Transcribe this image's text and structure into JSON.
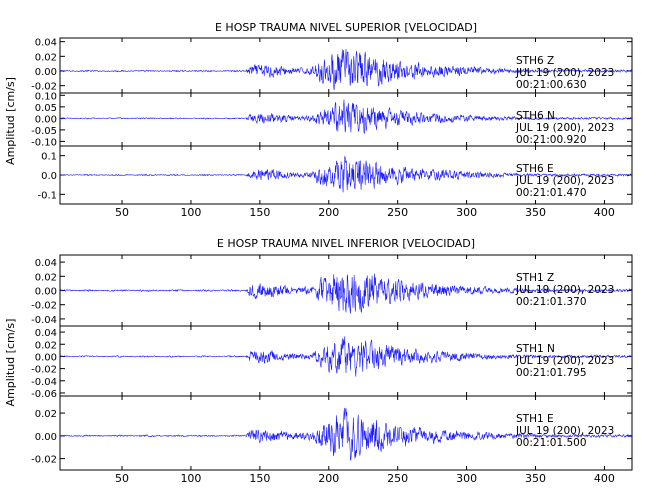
{
  "chart_data": [
    {
      "type": "line",
      "title": "E HOSP TRAUMA NIVEL SUPERIOR [VELOCIDAD]",
      "ylabel": "Amplitud [cm/s]",
      "xlim": [
        5,
        420
      ],
      "xticks": [
        "50",
        "100",
        "150",
        "200",
        "250",
        "300",
        "350",
        "400"
      ],
      "series": [
        {
          "name": "STH6 Z",
          "station": "STH6",
          "component": "Z",
          "date": "JUL 19 (200), 2023",
          "time": "00:21:00.630",
          "ylim": [
            -0.03,
            0.045
          ],
          "yticks": [
            "0.04",
            "0.02",
            "0.00",
            "-0.02"
          ],
          "peak_amplitude": 0.04
        },
        {
          "name": "STH6 N",
          "station": "STH6",
          "component": "N",
          "date": "JUL 19 (200), 2023",
          "time": "00:21:00.920",
          "ylim": [
            -0.12,
            0.11
          ],
          "yticks": [
            "0.10",
            "0.05",
            "0.00",
            "-0.05",
            "-0.10"
          ],
          "peak_amplitude": 0.1
        },
        {
          "name": "STH6 E",
          "station": "STH6",
          "component": "E",
          "date": "JUL 19 (200), 2023",
          "time": "00:21:01.470",
          "ylim": [
            -0.15,
            0.15
          ],
          "yticks": [
            "0.1",
            "0.0",
            "-0.1"
          ],
          "peak_amplitude": 0.13
        }
      ]
    },
    {
      "type": "line",
      "title": "E HOSP TRAUMA NIVEL INFERIOR [VELOCIDAD]",
      "ylabel": "Amplitud [cm/s]",
      "xlim": [
        5,
        420
      ],
      "xticks": [
        "50",
        "100",
        "150",
        "200",
        "250",
        "300",
        "350",
        "400"
      ],
      "series": [
        {
          "name": "STH1 Z",
          "station": "STH1",
          "component": "Z",
          "date": "JUL 19 (200), 2023",
          "time": "00:21:01.370",
          "ylim": [
            -0.05,
            0.05
          ],
          "yticks": [
            "0.04",
            "0.02",
            "0.00",
            "-0.02",
            "-0.04"
          ],
          "peak_amplitude": 0.045
        },
        {
          "name": "STH1 N",
          "station": "STH1",
          "component": "N",
          "date": "JUL 19 (200), 2023",
          "time": "00:21:01.795",
          "ylim": [
            -0.065,
            0.05
          ],
          "yticks": [
            "0.04",
            "0.02",
            "0.00",
            "-0.02",
            "-0.04",
            "-0.06"
          ],
          "peak_amplitude": 0.045
        },
        {
          "name": "STH1 E",
          "station": "STH1",
          "component": "E",
          "date": "JUL 19 (200), 2023",
          "time": "00:21:01.500",
          "ylim": [
            -0.03,
            0.035
          ],
          "yticks": [
            "0.02",
            "0.00",
            "-0.02"
          ],
          "peak_amplitude": 0.028
        }
      ]
    }
  ],
  "colors": {
    "trace": "#1a1aff",
    "axis": "#000000",
    "background": "#ffffff"
  }
}
